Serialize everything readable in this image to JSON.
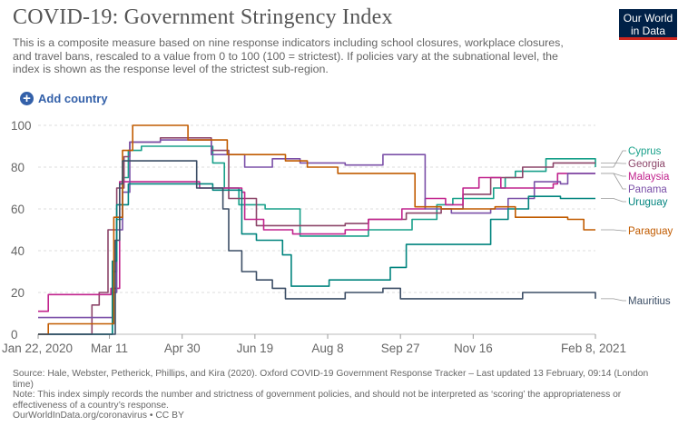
{
  "header": {
    "title": "COVID-19: Government Stringency Index",
    "subtitle": "This is a composite measure based on nine response indicators including school closures, workplace closures, and travel bans, rescaled to a value from 0 to 100 (100 = strictest). If policies vary at the subnational level, the index is shown as the response level of the strictest sub-region.",
    "logo_line1": "Our World",
    "logo_line2": "in Data",
    "logo_bg": "#002147",
    "logo_accent": "#ce261e"
  },
  "controls": {
    "add_country_label": "Add country",
    "add_icon": "plus-circle-icon",
    "accent": "#3360a9"
  },
  "footer": {
    "source": "Source: Hale, Webster, Petherick, Phillips, and Kira (2020). Oxford COVID-19 Government Response Tracker – Last updated 13 February, 09:14 (London time)",
    "note": "Note: This index simply records the number and strictness of government policies, and should not be interpreted as ‘scoring’ the appropriateness or effectiveness of a country’s response.",
    "credit": "OurWorldInData.org/coronavirus • CC BY"
  },
  "chart_data": {
    "type": "line",
    "ylim": [
      0,
      100
    ],
    "yticks": [
      0,
      20,
      40,
      60,
      80,
      100
    ],
    "xlim": [
      "2020-01-22",
      "2021-02-08"
    ],
    "xticks": [
      {
        "date": "2020-01-22",
        "label": "Jan 22, 2020"
      },
      {
        "date": "2020-03-11",
        "label": "Mar 11"
      },
      {
        "date": "2020-04-30",
        "label": "Apr 30"
      },
      {
        "date": "2020-06-19",
        "label": "Jun 19"
      },
      {
        "date": "2020-08-08",
        "label": "Aug 8"
      },
      {
        "date": "2020-09-27",
        "label": "Sep 27"
      },
      {
        "date": "2020-11-16",
        "label": "Nov 16"
      },
      {
        "date": "2021-02-08",
        "label": "Feb 8, 2021"
      }
    ],
    "grid": "horizontal",
    "legend": "right",
    "series": [
      {
        "name": "Cyprus",
        "color": "#18a08a",
        "points": [
          [
            "2020-01-22",
            0
          ],
          [
            "2020-03-12",
            0
          ],
          [
            "2020-03-13",
            30
          ],
          [
            "2020-03-16",
            55
          ],
          [
            "2020-03-20",
            75
          ],
          [
            "2020-03-24",
            88
          ],
          [
            "2020-04-02",
            90
          ],
          [
            "2020-05-04",
            90
          ],
          [
            "2020-05-21",
            82
          ],
          [
            "2020-05-29",
            70
          ],
          [
            "2020-06-08",
            62
          ],
          [
            "2020-06-26",
            60
          ],
          [
            "2020-07-20",
            47
          ],
          [
            "2020-09-05",
            50
          ],
          [
            "2020-10-05",
            55
          ],
          [
            "2020-10-22",
            62
          ],
          [
            "2020-11-02",
            65
          ],
          [
            "2020-11-30",
            70
          ],
          [
            "2020-12-08",
            75
          ],
          [
            "2020-12-15",
            78
          ],
          [
            "2021-01-05",
            84
          ],
          [
            "2021-01-31",
            84
          ],
          [
            "2021-02-08",
            80
          ]
        ]
      },
      {
        "name": "Georgia",
        "color": "#8c4569",
        "points": [
          [
            "2020-01-22",
            0
          ],
          [
            "2020-02-28",
            14
          ],
          [
            "2020-03-04",
            20
          ],
          [
            "2020-03-10",
            50
          ],
          [
            "2020-03-16",
            70
          ],
          [
            "2020-03-21",
            85
          ],
          [
            "2020-03-25",
            92
          ],
          [
            "2020-04-15",
            94
          ],
          [
            "2020-05-20",
            88
          ],
          [
            "2020-06-01",
            65
          ],
          [
            "2020-06-20",
            52
          ],
          [
            "2020-07-10",
            52
          ],
          [
            "2020-08-20",
            53
          ],
          [
            "2020-09-05",
            55
          ],
          [
            "2020-10-01",
            58
          ],
          [
            "2020-10-25",
            60
          ],
          [
            "2020-11-09",
            67
          ],
          [
            "2020-11-28",
            75
          ],
          [
            "2020-12-20",
            80
          ],
          [
            "2021-01-10",
            82
          ],
          [
            "2021-02-08",
            82
          ]
        ]
      },
      {
        "name": "Malaysia",
        "color": "#c1238d",
        "points": [
          [
            "2020-01-22",
            11
          ],
          [
            "2020-01-29",
            19
          ],
          [
            "2020-03-12",
            22
          ],
          [
            "2020-03-18",
            73
          ],
          [
            "2020-05-04",
            73
          ],
          [
            "2020-05-12",
            70
          ],
          [
            "2020-06-10",
            68
          ],
          [
            "2020-06-12",
            55
          ],
          [
            "2020-06-25",
            50
          ],
          [
            "2020-07-15",
            48
          ],
          [
            "2020-08-20",
            50
          ],
          [
            "2020-09-05",
            55
          ],
          [
            "2020-09-28",
            60
          ],
          [
            "2020-10-14",
            65
          ],
          [
            "2020-10-28",
            62
          ],
          [
            "2020-11-09",
            70
          ],
          [
            "2020-11-20",
            75
          ],
          [
            "2020-12-05",
            70
          ],
          [
            "2021-01-10",
            72
          ],
          [
            "2021-01-13",
            77
          ],
          [
            "2021-02-08",
            77
          ]
        ]
      },
      {
        "name": "Panama",
        "color": "#7b50a8",
        "points": [
          [
            "2020-01-22",
            8
          ],
          [
            "2020-03-11",
            8
          ],
          [
            "2020-03-13",
            20
          ],
          [
            "2020-03-16",
            50
          ],
          [
            "2020-03-20",
            68
          ],
          [
            "2020-03-25",
            92
          ],
          [
            "2020-04-15",
            93
          ],
          [
            "2020-05-12",
            93
          ],
          [
            "2020-05-20",
            86
          ],
          [
            "2020-06-01",
            86
          ],
          [
            "2020-06-12",
            80
          ],
          [
            "2020-07-01",
            84
          ],
          [
            "2020-07-20",
            82
          ],
          [
            "2020-08-20",
            81
          ],
          [
            "2020-09-15",
            86
          ],
          [
            "2020-10-10",
            86
          ],
          [
            "2020-10-14",
            60
          ],
          [
            "2020-11-01",
            58
          ],
          [
            "2020-11-28",
            60
          ],
          [
            "2020-12-10",
            65
          ],
          [
            "2020-12-28",
            73
          ],
          [
            "2021-01-15",
            72
          ],
          [
            "2021-01-20",
            77
          ],
          [
            "2021-02-08",
            77
          ]
        ]
      },
      {
        "name": "Uruguay",
        "color": "#00847e",
        "points": [
          [
            "2020-01-22",
            0
          ],
          [
            "2020-03-11",
            0
          ],
          [
            "2020-03-13",
            35
          ],
          [
            "2020-03-16",
            62
          ],
          [
            "2020-03-24",
            72
          ],
          [
            "2020-04-30",
            72
          ],
          [
            "2020-05-21",
            69
          ],
          [
            "2020-06-10",
            48
          ],
          [
            "2020-06-20",
            45
          ],
          [
            "2020-07-08",
            38
          ],
          [
            "2020-07-14",
            23
          ],
          [
            "2020-08-01",
            23
          ],
          [
            "2020-08-09",
            26
          ],
          [
            "2020-09-20",
            32
          ],
          [
            "2020-10-01",
            43
          ],
          [
            "2020-11-20",
            43
          ],
          [
            "2020-11-28",
            55
          ],
          [
            "2020-12-10",
            60
          ],
          [
            "2020-12-24",
            66
          ],
          [
            "2021-01-15",
            65
          ],
          [
            "2021-02-08",
            65
          ]
        ]
      },
      {
        "name": "Paraguay",
        "color": "#c15b00",
        "points": [
          [
            "2020-01-22",
            0
          ],
          [
            "2020-01-29",
            5
          ],
          [
            "2020-03-10",
            5
          ],
          [
            "2020-03-14",
            56
          ],
          [
            "2020-03-20",
            88
          ],
          [
            "2020-03-27",
            100
          ],
          [
            "2020-04-15",
            100
          ],
          [
            "2020-05-04",
            93
          ],
          [
            "2020-05-31",
            86
          ],
          [
            "2020-06-15",
            86
          ],
          [
            "2020-07-10",
            83
          ],
          [
            "2020-07-25",
            80
          ],
          [
            "2020-08-15",
            77
          ],
          [
            "2020-10-01",
            77
          ],
          [
            "2020-10-07",
            61
          ],
          [
            "2020-10-25",
            60
          ],
          [
            "2020-12-01",
            61
          ],
          [
            "2020-12-15",
            56
          ],
          [
            "2021-01-01",
            56
          ],
          [
            "2021-01-20",
            55
          ],
          [
            "2021-01-31",
            50
          ],
          [
            "2021-02-08",
            50
          ]
        ]
      },
      {
        "name": "Mauritius",
        "color": "#3c4e66",
        "points": [
          [
            "2020-01-22",
            0
          ],
          [
            "2020-03-12",
            0
          ],
          [
            "2020-03-15",
            45
          ],
          [
            "2020-03-18",
            72
          ],
          [
            "2020-03-20",
            83
          ],
          [
            "2020-04-30",
            83
          ],
          [
            "2020-05-10",
            70
          ],
          [
            "2020-05-28",
            60
          ],
          [
            "2020-06-01",
            40
          ],
          [
            "2020-06-10",
            30
          ],
          [
            "2020-06-20",
            26
          ],
          [
            "2020-07-01",
            22
          ],
          [
            "2020-07-10",
            17
          ],
          [
            "2020-08-15",
            17
          ],
          [
            "2020-08-20",
            20
          ],
          [
            "2020-09-15",
            22
          ],
          [
            "2020-09-27",
            17
          ],
          [
            "2020-12-01",
            17
          ],
          [
            "2020-12-20",
            20
          ],
          [
            "2021-01-20",
            20
          ],
          [
            "2021-02-08",
            17
          ]
        ]
      }
    ]
  }
}
